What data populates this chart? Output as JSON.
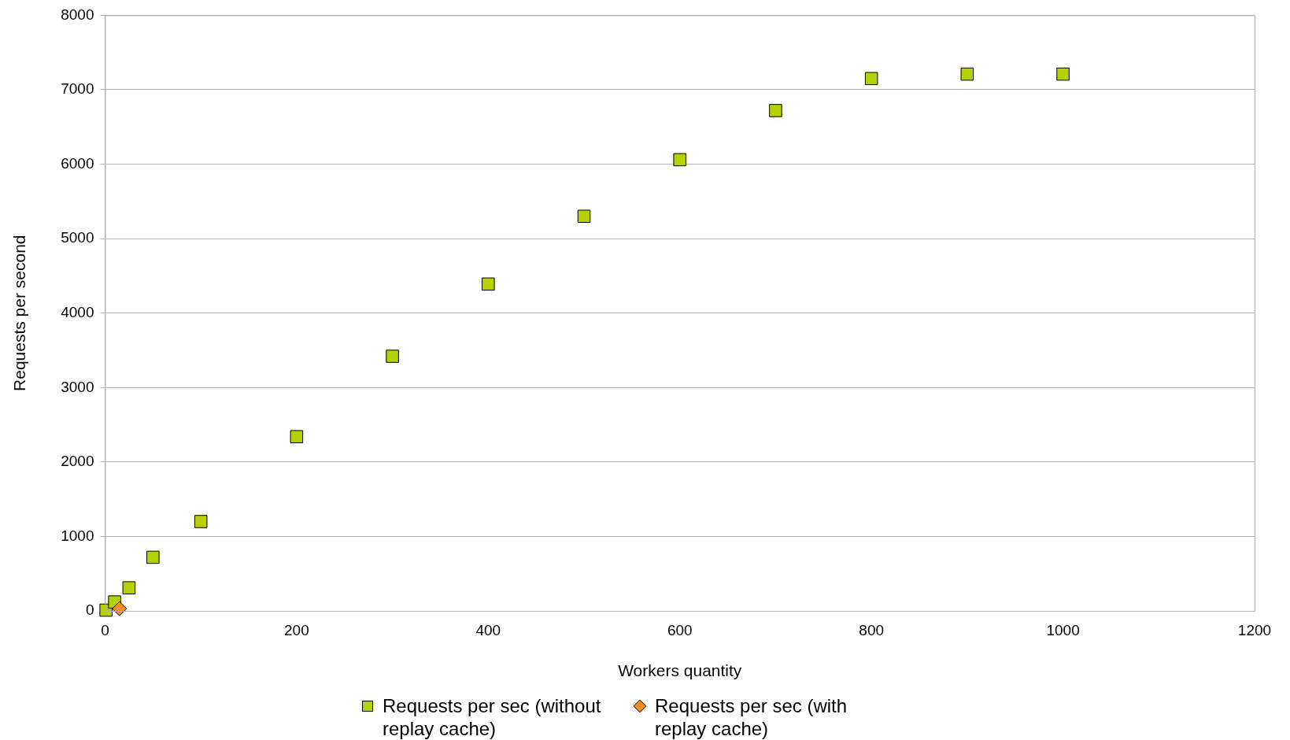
{
  "chart_data": {
    "type": "scatter",
    "xlabel": "Workers quantity",
    "ylabel": "Requests per second",
    "xlim": [
      0,
      1200
    ],
    "xticks": [
      0,
      200,
      400,
      600,
      800,
      1000,
      1200
    ],
    "ylim": [
      0,
      8000
    ],
    "yticks": [
      0,
      1000,
      2000,
      3000,
      4000,
      5000,
      6000,
      7000,
      8000
    ],
    "grid": "y",
    "legend": "bottom",
    "series": [
      {
        "name": "Requests per sec (without replay cache)",
        "color": "#b5d200",
        "marker": "square",
        "x": [
          1,
          10,
          25,
          50,
          100,
          200,
          300,
          400,
          500,
          600,
          700,
          800,
          900,
          1000
        ],
        "values": [
          10,
          120,
          310,
          720,
          1200,
          2340,
          3420,
          4390,
          5300,
          6060,
          6720,
          7150,
          7210,
          7210
        ]
      },
      {
        "name": "Requests per sec (with replay cache)",
        "color": "#ff8c1a",
        "marker": "diamond",
        "x": [
          15
        ],
        "values": [
          30
        ]
      }
    ]
  }
}
